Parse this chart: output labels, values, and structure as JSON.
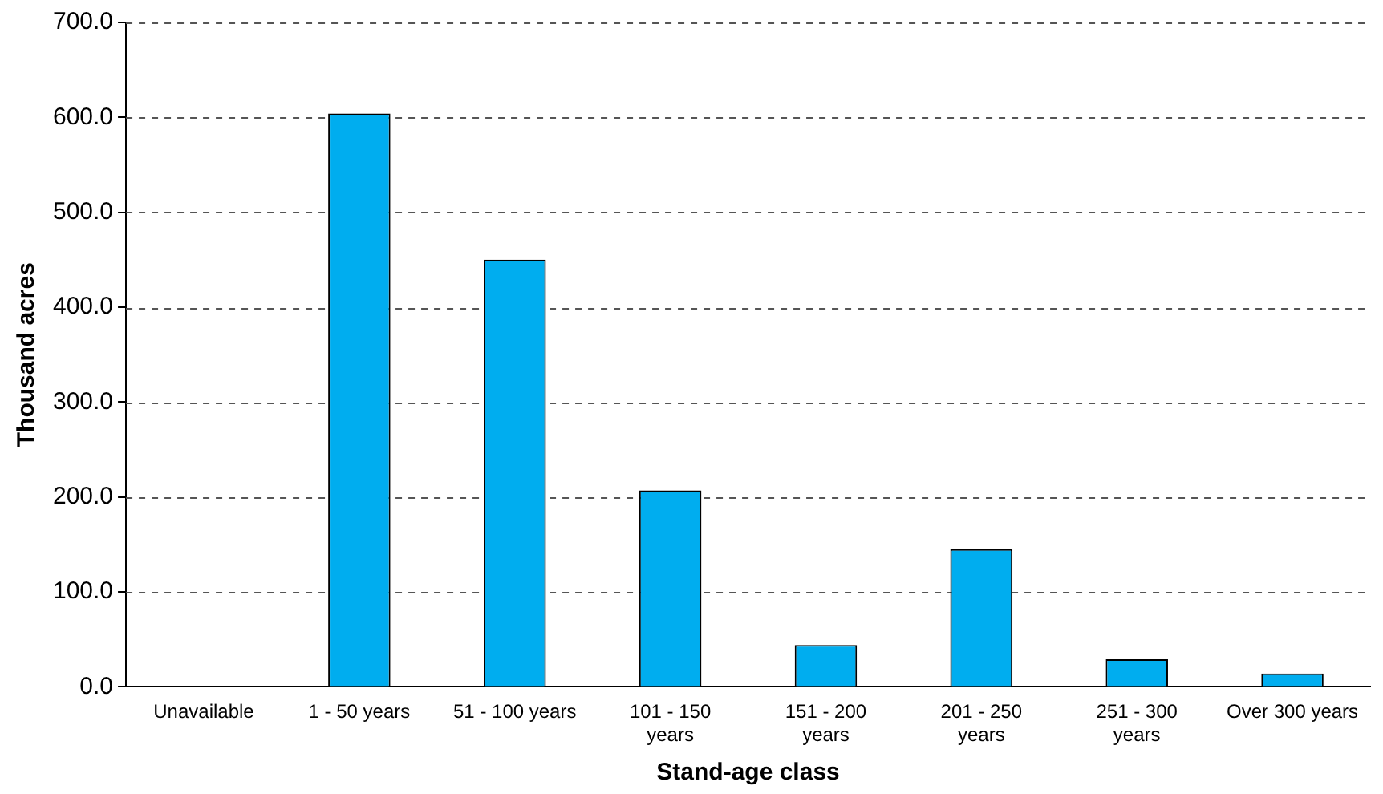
{
  "chart_data": {
    "type": "bar",
    "xlabel": "Stand-age class",
    "ylabel": "Thousand acres",
    "categories": [
      "Unavailable",
      "1 - 50 years",
      "51 - 100 years",
      "101 - 150 years",
      "151 - 200 years",
      "201 - 250 years",
      "251 - 300 years",
      "Over 300 years"
    ],
    "values": [
      0,
      604,
      450,
      207,
      44,
      145,
      29,
      14
    ],
    "color": "#00adef",
    "ylim": [
      0,
      700
    ],
    "yticks": [
      {
        "value": 0,
        "label": "0.0"
      },
      {
        "value": 100,
        "label": "100.0"
      },
      {
        "value": 200,
        "label": "200.0"
      },
      {
        "value": 300,
        "label": "300.0"
      },
      {
        "value": 400,
        "label": "400.0"
      },
      {
        "value": 500,
        "label": "500.0"
      },
      {
        "value": 600,
        "label": "600.0"
      },
      {
        "value": 700,
        "label": "700.0"
      }
    ],
    "grid": "y",
    "legend": false
  }
}
